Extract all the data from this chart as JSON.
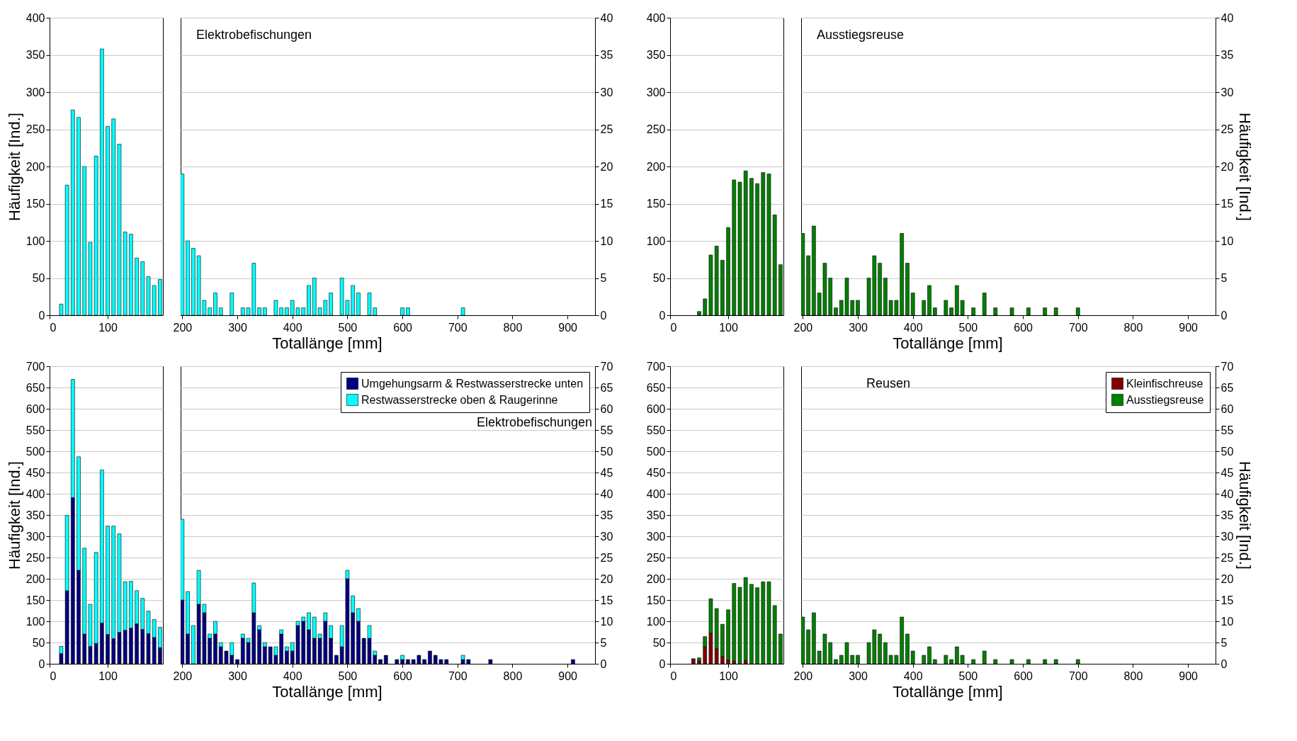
{
  "chart_data": [
    {
      "type": "bar",
      "x": [
        20,
        30,
        40,
        50,
        60,
        70,
        80,
        90,
        100,
        110,
        120,
        130,
        140,
        150,
        160,
        170,
        180,
        190
      ],
      "series": [
        {
          "color": "#00ffff",
          "values": [
            15,
            175,
            276,
            266,
            200,
            98,
            214,
            358,
            254,
            264,
            230,
            112,
            109,
            77,
            72,
            52,
            40,
            48
          ]
        }
      ],
      "xlim": [
        0,
        195
      ],
      "xticks": [
        0,
        100
      ],
      "ylim": [
        0,
        400
      ],
      "yticks": [
        0,
        50,
        100,
        150,
        200,
        250,
        300,
        350,
        400
      ],
      "ylabel": "Häufigkeit [Ind.]",
      "grid": "y"
    },
    {
      "type": "bar",
      "title": "Elektrobefischungen",
      "xlabel": "Totallänge [mm]",
      "x": [
        200,
        210,
        220,
        230,
        240,
        250,
        260,
        270,
        290,
        310,
        320,
        330,
        340,
        350,
        370,
        380,
        390,
        400,
        410,
        420,
        430,
        440,
        450,
        460,
        470,
        490,
        500,
        510,
        520,
        540,
        550,
        600,
        610,
        710
      ],
      "series": [
        {
          "color": "#00ffff",
          "axis": "y2",
          "values": [
            19,
            10,
            9,
            8,
            2,
            1,
            3,
            1,
            3,
            1,
            1,
            7,
            1,
            1,
            2,
            1,
            1,
            2,
            1,
            1,
            4,
            5,
            1,
            2,
            3,
            5,
            2,
            4,
            3,
            3,
            1,
            1,
            1,
            1
          ]
        }
      ],
      "xlim": [
        197,
        950
      ],
      "xticks": [
        200,
        300,
        400,
        500,
        600,
        700,
        800,
        900
      ],
      "y2lim": [
        0,
        40
      ],
      "y2ticks": [
        0,
        5,
        10,
        15,
        20,
        25,
        30,
        35,
        40
      ],
      "grid": "y"
    },
    {
      "type": "bar",
      "x": [
        50,
        60,
        70,
        80,
        90,
        100,
        110,
        120,
        130,
        140,
        150,
        160,
        170,
        180,
        190
      ],
      "series": [
        {
          "color": "#008000",
          "values": [
            5,
            22,
            81,
            93,
            74,
            118,
            182,
            179,
            194,
            184,
            177,
            192,
            190,
            135,
            68
          ]
        }
      ],
      "xlim": [
        0,
        195
      ],
      "xticks": [
        0,
        100
      ],
      "ylim": [
        0,
        400
      ],
      "yticks": [
        0,
        50,
        100,
        150,
        200,
        250,
        300,
        350,
        400
      ],
      "grid": "y"
    },
    {
      "type": "bar",
      "title": "Ausstiegsreuse",
      "xlabel": "Totallänge [mm]",
      "y2label": "Häufigkeit [Ind.]",
      "x": [
        200,
        210,
        220,
        230,
        240,
        250,
        260,
        270,
        280,
        290,
        300,
        320,
        330,
        340,
        350,
        360,
        370,
        380,
        390,
        400,
        420,
        430,
        440,
        460,
        470,
        480,
        490,
        510,
        530,
        550,
        580,
        610,
        640,
        660,
        700
      ],
      "series": [
        {
          "color": "#008000",
          "axis": "y2",
          "values": [
            11,
            8,
            12,
            3,
            7,
            5,
            1,
            2,
            5,
            2,
            2,
            5,
            8,
            7,
            5,
            2,
            2,
            11,
            7,
            3,
            2,
            4,
            1,
            2,
            1,
            4,
            2,
            1,
            3,
            1,
            1,
            1,
            1,
            1,
            1
          ]
        }
      ],
      "xlim": [
        197,
        950
      ],
      "xticks": [
        200,
        300,
        400,
        500,
        600,
        700,
        800,
        900
      ],
      "y2lim": [
        0,
        40
      ],
      "y2ticks": [
        0,
        5,
        10,
        15,
        20,
        25,
        30,
        35,
        40
      ],
      "grid": "y"
    },
    {
      "type": "bar",
      "stacked": true,
      "x": [
        20,
        30,
        40,
        50,
        60,
        70,
        80,
        90,
        100,
        110,
        120,
        130,
        140,
        150,
        160,
        170,
        180,
        190
      ],
      "series": [
        {
          "color": "#000080",
          "values": [
            24,
            172,
            391,
            220,
            70,
            41,
            48,
            96,
            69,
            59,
            74,
            79,
            84,
            94,
            81,
            71,
            62,
            38
          ]
        },
        {
          "color": "#00ffff",
          "values": [
            17,
            177,
            278,
            267,
            202,
            99,
            214,
            360,
            255,
            265,
            232,
            114,
            110,
            78,
            73,
            53,
            42,
            48
          ]
        }
      ],
      "xlim": [
        0,
        195
      ],
      "xticks": [
        0,
        100
      ],
      "ylim": [
        0,
        700
      ],
      "yticks": [
        0,
        50,
        100,
        150,
        200,
        250,
        300,
        350,
        400,
        450,
        500,
        550,
        600,
        650,
        700
      ],
      "ylabel": "Häufigkeit [Ind.]",
      "grid": "y"
    },
    {
      "type": "bar",
      "stacked": true,
      "title": "Elektrobefischungen",
      "xlabel": "Totallänge [mm]",
      "legend": "top right",
      "x": [
        200,
        210,
        220,
        230,
        240,
        250,
        260,
        270,
        280,
        290,
        300,
        310,
        320,
        330,
        340,
        350,
        360,
        370,
        380,
        390,
        400,
        410,
        420,
        430,
        440,
        450,
        460,
        470,
        480,
        490,
        500,
        510,
        520,
        530,
        540,
        550,
        560,
        570,
        590,
        600,
        610,
        620,
        630,
        640,
        650,
        660,
        670,
        680,
        710,
        720,
        760,
        910
      ],
      "series": [
        {
          "name": "Umgehungsarm & Restwasserstrecke unten",
          "color": "#000080",
          "axis": "y2",
          "values": [
            15,
            7,
            null,
            14,
            12,
            6,
            7,
            4,
            3,
            2,
            1,
            6,
            5,
            12,
            8,
            4,
            4,
            2,
            7,
            3,
            3,
            9,
            10,
            8,
            6,
            6,
            10,
            6,
            2,
            4,
            20,
            12,
            10,
            6,
            6,
            2,
            1,
            2,
            1,
            1,
            1,
            1,
            2,
            1,
            3,
            2,
            1,
            1,
            1,
            1,
            1,
            1
          ]
        },
        {
          "name": "Restwasserstrecke oben & Raugerinne",
          "color": "#00ffff",
          "axis": "y2",
          "values": [
            19,
            10,
            9,
            8,
            2,
            1,
            3,
            1,
            null,
            3,
            null,
            1,
            1,
            7,
            1,
            1,
            null,
            2,
            1,
            1,
            2,
            1,
            1,
            4,
            5,
            1,
            2,
            3,
            null,
            5,
            2,
            4,
            3,
            null,
            3,
            1,
            null,
            null,
            null,
            1,
            null,
            null,
            null,
            null,
            null,
            null,
            null,
            null,
            1,
            null,
            null,
            null
          ]
        }
      ],
      "xlim": [
        197,
        950
      ],
      "xticks": [
        200,
        300,
        400,
        500,
        600,
        700,
        800,
        900
      ],
      "y2lim": [
        0,
        70
      ],
      "y2ticks": [
        0,
        5,
        10,
        15,
        20,
        25,
        30,
        35,
        40,
        45,
        50,
        55,
        60,
        65,
        70
      ],
      "grid": "y"
    },
    {
      "type": "bar",
      "stacked": true,
      "x": [
        40,
        50,
        60,
        70,
        80,
        90,
        100,
        110,
        120,
        130,
        140,
        150,
        160,
        170,
        180,
        190
      ],
      "series": [
        {
          "color": "#800000",
          "values": [
            12,
            7,
            40,
            72,
            35,
            17,
            9,
            6,
            null,
            8,
            null,
            null,
            null,
            null,
            null,
            null
          ]
        },
        {
          "color": "#008000",
          "values": [
            null,
            7,
            24,
            81,
            95,
            76,
            118,
            183,
            180,
            195,
            187,
            179,
            193,
            193,
            137,
            70
          ]
        }
      ],
      "xlim": [
        0,
        195
      ],
      "xticks": [
        0,
        100
      ],
      "ylim": [
        0,
        700
      ],
      "yticks": [
        0,
        50,
        100,
        150,
        200,
        250,
        300,
        350,
        400,
        450,
        500,
        550,
        600,
        650,
        700
      ],
      "grid": "y"
    },
    {
      "type": "bar",
      "stacked": true,
      "title": "Reusen",
      "xlabel": "Totallänge [mm]",
      "y2label": "Häufigkeit [Ind.]",
      "legend": "top right",
      "x": [
        200,
        210,
        220,
        230,
        240,
        250,
        260,
        270,
        280,
        290,
        300,
        320,
        330,
        340,
        350,
        360,
        370,
        380,
        390,
        400,
        420,
        430,
        440,
        460,
        470,
        480,
        490,
        510,
        530,
        550,
        580,
        610,
        640,
        660,
        700
      ],
      "series": [
        {
          "name": "Kleinfischreuse",
          "color": "#800000",
          "axis": "y2",
          "values": [
            null,
            null,
            null,
            null,
            null,
            null,
            null,
            null,
            null,
            null,
            null,
            null,
            null,
            null,
            null,
            null,
            null,
            null,
            null,
            null,
            null,
            null,
            null,
            null,
            null,
            null,
            null,
            null,
            null,
            null,
            null,
            null,
            null,
            null,
            null
          ]
        },
        {
          "name": "Ausstiegsreuse",
          "color": "#008000",
          "axis": "y2",
          "values": [
            11,
            8,
            12,
            3,
            7,
            5,
            1,
            2,
            5,
            2,
            2,
            5,
            8,
            7,
            5,
            2,
            2,
            11,
            7,
            3,
            2,
            4,
            1,
            2,
            1,
            4,
            2,
            1,
            3,
            1,
            1,
            1,
            1,
            1,
            1
          ]
        }
      ],
      "xlim": [
        197,
        950
      ],
      "xticks": [
        200,
        300,
        400,
        500,
        600,
        700,
        800,
        900
      ],
      "y2lim": [
        0,
        70
      ],
      "y2ticks": [
        0,
        5,
        10,
        15,
        20,
        25,
        30,
        35,
        40,
        45,
        50,
        55,
        60,
        65,
        70
      ],
      "grid": "y"
    }
  ]
}
